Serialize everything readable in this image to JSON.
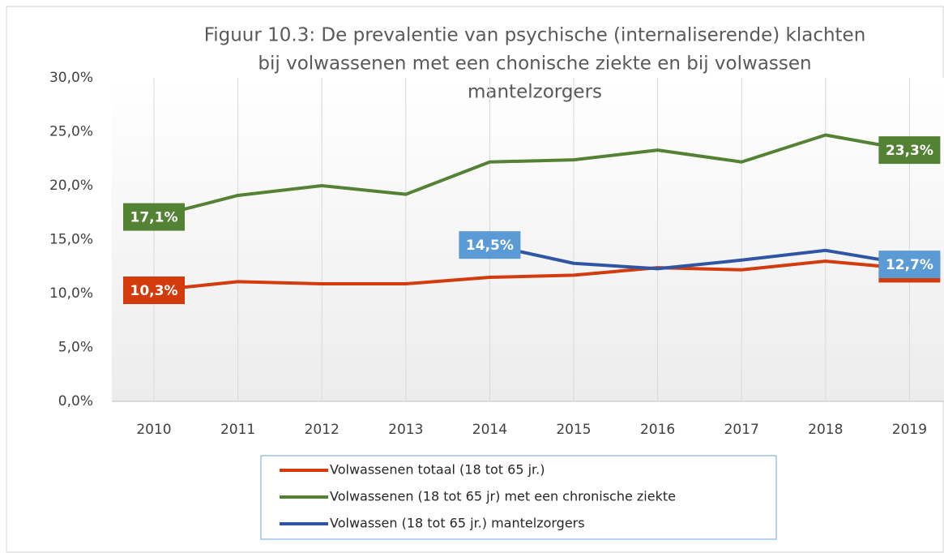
{
  "chart_data": {
    "type": "line",
    "title": [
      "Figuur 10.3: De prevalentie van psychische (internaliserende) klachten",
      "bij volwassenen met een chonische ziekte en bij volwassen",
      "mantelzorgers"
    ],
    "categories": [
      "2010",
      "2011",
      "2012",
      "2013",
      "2014",
      "2015",
      "2016",
      "2017",
      "2018",
      "2019"
    ],
    "series": [
      {
        "name": "Volwassenen totaal (18 tot 65 jr.)",
        "color": "#d33a0c",
        "values": [
          10.3,
          11.1,
          10.9,
          10.9,
          11.5,
          11.7,
          12.4,
          12.2,
          13.0,
          12.3
        ],
        "value_labels": [
          "10,3%",
          null,
          null,
          null,
          null,
          null,
          null,
          null,
          null,
          "12,3%"
        ]
      },
      {
        "name": "Volwassenen (18 tot 65 jr) met een chronische ziekte",
        "color": "#548235",
        "values": [
          17.1,
          19.1,
          20.0,
          19.2,
          22.2,
          22.4,
          23.3,
          22.2,
          24.7,
          23.3
        ],
        "value_labels": [
          "17,1%",
          null,
          null,
          null,
          null,
          null,
          null,
          null,
          null,
          "23,3%"
        ]
      },
      {
        "name": "Volwassen (18 tot 65 jr.) mantelzorgers",
        "color": "#2f55a4",
        "label_color": "#5b9bd5",
        "values": [
          null,
          null,
          null,
          null,
          14.5,
          12.8,
          12.3,
          13.1,
          14.0,
          12.7
        ],
        "value_labels": [
          null,
          null,
          null,
          null,
          "14,5%",
          null,
          null,
          null,
          null,
          "12,7%"
        ]
      }
    ],
    "ylim": [
      0,
      30
    ],
    "yticks": [
      {
        "value": 0,
        "label": "0,0%"
      },
      {
        "value": 5,
        "label": "5,0%"
      },
      {
        "value": 10,
        "label": "10,0%"
      },
      {
        "value": 15,
        "label": "15,0%"
      },
      {
        "value": 20,
        "label": "20,0%"
      },
      {
        "value": 25,
        "label": "25,0%"
      },
      {
        "value": 30,
        "label": "30,0%"
      }
    ],
    "grid": "x"
  }
}
